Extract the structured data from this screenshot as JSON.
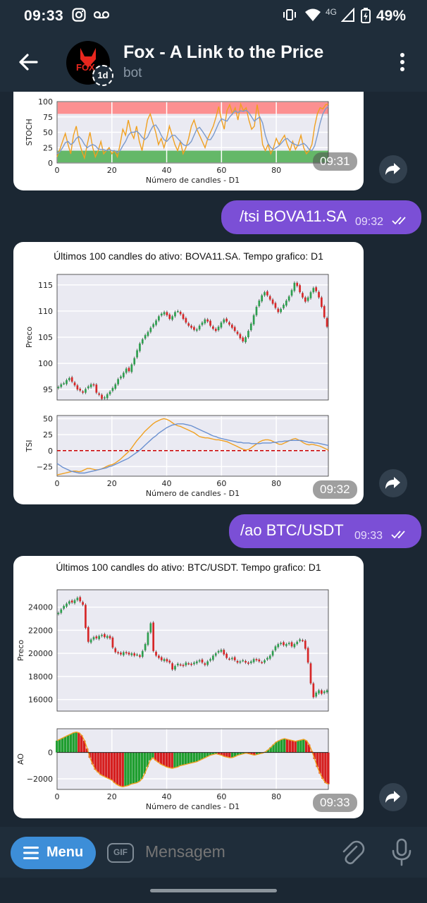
{
  "status_bar": {
    "time": "09:33",
    "network": "4G",
    "battery": "49%"
  },
  "header": {
    "title": "Fox - A Link to the Price",
    "subtitle": "bot",
    "avatar_text": "FOX",
    "timer_label": "1d"
  },
  "messages": [
    {
      "type": "chart",
      "chart": "stoch",
      "time": "09:31"
    },
    {
      "type": "text",
      "text": "/tsi BOVA11.SA",
      "time": "09:32"
    },
    {
      "type": "chart",
      "chart": "bova",
      "time": "09:32"
    },
    {
      "type": "text",
      "text": "/ao BTC/USDT",
      "time": "09:33"
    },
    {
      "type": "chart",
      "chart": "btc",
      "time": "09:33"
    }
  ],
  "input": {
    "menu_label": "Menu",
    "gif_label": "GIF",
    "placeholder": "Mensagem"
  },
  "colors": {
    "accent": "#3d8ed8",
    "outgoing": "#7b4fd6",
    "header_bg": "#1f2d3a",
    "chat_bg": "#1b2733"
  },
  "chart_data": [
    {
      "type": "line",
      "title": "",
      "ylabel": "STOCH",
      "xlabel": "Número de candles - D1",
      "xlim": [
        0,
        99
      ],
      "ylim": [
        0,
        100
      ],
      "xticks": [
        0,
        20,
        40,
        60,
        80
      ],
      "yticks": [
        0,
        25,
        50,
        75,
        100
      ],
      "bands": [
        {
          "from": 80,
          "to": 100,
          "color": "#ff8080"
        },
        {
          "from": 0,
          "to": 20,
          "color": "#4caf50"
        }
      ],
      "series": [
        {
          "color": "#f0a020",
          "values": [
            10,
            22,
            35,
            48,
            30,
            15,
            45,
            60,
            35,
            20,
            8,
            30,
            50,
            25,
            10,
            20,
            35,
            15,
            20,
            25,
            15,
            20,
            10,
            30,
            55,
            45,
            70,
            50,
            40,
            60,
            35,
            20,
            45,
            70,
            80,
            65,
            50,
            30,
            40,
            25,
            40,
            60,
            45,
            30,
            20,
            35,
            15,
            25,
            40,
            60,
            70,
            55,
            45,
            35,
            25,
            40,
            50,
            60,
            75,
            92,
            70,
            55,
            85,
            95,
            80,
            90,
            70,
            96,
            85,
            90,
            70,
            55,
            60,
            95,
            70,
            30,
            20,
            30,
            15,
            25,
            40,
            30,
            38,
            45,
            30,
            20,
            35,
            22,
            30,
            45,
            25,
            15,
            20,
            30,
            60,
            80,
            90,
            88,
            95,
            96
          ]
        },
        {
          "color": "#7b9acc",
          "values": [
            15,
            18,
            25,
            33,
            35,
            30,
            33,
            40,
            43,
            38,
            30,
            25,
            28,
            30,
            28,
            23,
            22,
            22,
            20,
            22,
            20,
            20,
            17,
            20,
            28,
            35,
            45,
            50,
            50,
            52,
            48,
            42,
            38,
            42,
            52,
            60,
            62,
            55,
            45,
            38,
            35,
            40,
            45,
            45,
            40,
            35,
            30,
            28,
            30,
            35,
            45,
            55,
            58,
            52,
            45,
            38,
            38,
            45,
            55,
            65,
            72,
            70,
            68,
            75,
            80,
            85,
            82,
            85,
            84,
            86,
            82,
            75,
            68,
            72,
            75,
            65,
            45,
            32,
            25,
            22,
            25,
            28,
            33,
            38,
            40,
            35,
            32,
            30,
            28,
            30,
            32,
            28,
            22,
            20,
            28,
            45,
            65,
            80,
            88,
            92
          ]
        }
      ]
    },
    {
      "type": "candlestick",
      "title": "Últimos 100 candles do ativo: BOVA11.SA. Tempo grafico: D1",
      "ylabel": "Preco",
      "ylim": [
        93,
        117
      ],
      "yticks": [
        95,
        100,
        105,
        110,
        115
      ],
      "closes": [
        95.5,
        96.0,
        96.2,
        96.8,
        97.2,
        96.5,
        95.8,
        95.0,
        94.8,
        94.4,
        95.1,
        95.6,
        96.0,
        95.8,
        94.4,
        94.0,
        93.2,
        93.5,
        94.1,
        94.6,
        95.3,
        96.0,
        97.0,
        97.5,
        98.2,
        99.0,
        98.5,
        99.8,
        101.0,
        102.5,
        103.8,
        104.6,
        105.4,
        106.0,
        106.8,
        107.5,
        108.2,
        109.0,
        109.5,
        109.8,
        109.2,
        108.5,
        109.0,
        109.8,
        110.0,
        109.4,
        108.5,
        107.8,
        107.2,
        106.8,
        106.4,
        106.5,
        107.2,
        107.8,
        108.4,
        108.0,
        107.2,
        106.6,
        106.2,
        107.0,
        107.8,
        108.4,
        108.0,
        107.4,
        106.8,
        106.2,
        105.6,
        104.8,
        104.2,
        105.0,
        106.2,
        107.6,
        109.2,
        110.8,
        112.0,
        113.0,
        113.6,
        113.0,
        112.2,
        111.4,
        110.6,
        109.8,
        110.4,
        111.2,
        112.0,
        112.8,
        114.0,
        115.4,
        114.8,
        113.6,
        112.6,
        111.8,
        112.6,
        113.6,
        114.4,
        113.8,
        112.6,
        110.8,
        108.8,
        107.0
      ]
    },
    {
      "type": "line",
      "ylabel": "TSI",
      "xlabel": "Número de candles - D1",
      "xlim": [
        0,
        99
      ],
      "ylim": [
        -40,
        55
      ],
      "xticks": [
        0,
        20,
        40,
        60,
        80
      ],
      "yticks": [
        -25,
        0,
        25,
        50
      ],
      "hline": {
        "value": 0,
        "color": "#cc0000"
      },
      "series": [
        {
          "color": "#f0a020",
          "values": [
            -38,
            -37,
            -36,
            -35,
            -34,
            -33,
            -32,
            -32,
            -33,
            -32,
            -30,
            -28,
            -28,
            -29,
            -30,
            -30,
            -29,
            -27,
            -25,
            -23,
            -22,
            -20,
            -17,
            -14,
            -10,
            -6,
            -2,
            3,
            9,
            15,
            20,
            25,
            30,
            34,
            38,
            42,
            45,
            47,
            49,
            50,
            49,
            47,
            44,
            41,
            39,
            38,
            36,
            34,
            32,
            30,
            28,
            25,
            22,
            21,
            20,
            20,
            19,
            18,
            17,
            17,
            16,
            15,
            14,
            12,
            10,
            8,
            6,
            4,
            2,
            1,
            2,
            5,
            8,
            11,
            14,
            16,
            17,
            17,
            16,
            14,
            12,
            10,
            10,
            12,
            14,
            16,
            18,
            19,
            17,
            15,
            12,
            10,
            9,
            10,
            9,
            8,
            7,
            5,
            3,
            1
          ]
        },
        {
          "color": "#6a90d0",
          "values": [
            -20,
            -23,
            -26,
            -28,
            -30,
            -32,
            -33,
            -34,
            -35,
            -35,
            -35,
            -34,
            -33,
            -32,
            -31,
            -30,
            -29,
            -28,
            -27,
            -25,
            -24,
            -22,
            -20,
            -18,
            -16,
            -14,
            -12,
            -9,
            -6,
            -3,
            0,
            4,
            8,
            12,
            16,
            20,
            23,
            27,
            30,
            33,
            36,
            38,
            40,
            41,
            42,
            42,
            42,
            41,
            40,
            39,
            37,
            35,
            33,
            31,
            29,
            27,
            25,
            23,
            22,
            20,
            19,
            18,
            17,
            16,
            15,
            14,
            13,
            13,
            12,
            12,
            12,
            11,
            11,
            11,
            11,
            12,
            12,
            12,
            12,
            13,
            13,
            14,
            14,
            15,
            15,
            16,
            16,
            16,
            16,
            16,
            15,
            14,
            13,
            13,
            12,
            12,
            11,
            10,
            9,
            8
          ]
        }
      ]
    },
    {
      "type": "candlestick",
      "title": "Últimos 100 candles do ativo: BTC/USDT. Tempo grafico: D1",
      "ylabel": "Preco",
      "ylim": [
        15000,
        25500
      ],
      "yticks": [
        16000,
        18000,
        20000,
        22000,
        24000
      ],
      "closes": [
        23500,
        23800,
        24100,
        24300,
        24500,
        24400,
        24600,
        24800,
        24500,
        24200,
        22200,
        21000,
        21200,
        21400,
        21300,
        21500,
        21600,
        21400,
        21500,
        21300,
        20500,
        20100,
        20000,
        19900,
        20100,
        20000,
        19900,
        20000,
        19800,
        19900,
        19700,
        20200,
        20800,
        21800,
        22600,
        20200,
        19800,
        19600,
        19400,
        19500,
        19300,
        19200,
        18600,
        18900,
        19100,
        19000,
        18900,
        19200,
        19100,
        19000,
        19200,
        19300,
        19400,
        19200,
        19000,
        19300,
        19500,
        19800,
        20000,
        20200,
        20300,
        19900,
        19600,
        19500,
        19600,
        19400,
        19200,
        19300,
        19400,
        19200,
        19100,
        19300,
        19500,
        19400,
        19300,
        19200,
        19400,
        19600,
        19800,
        20200,
        20600,
        20800,
        20900,
        20700,
        20800,
        20900,
        20600,
        20800,
        21000,
        21200,
        21100,
        20400,
        19200,
        17400,
        16200,
        16600,
        16800,
        16500,
        16700,
        16800
      ]
    },
    {
      "type": "bar",
      "ylabel": "AO",
      "xlabel": "Número de candles - D1",
      "xlim": [
        0,
        99
      ],
      "ylim": [
        -2800,
        1800
      ],
      "xticks": [
        0,
        20,
        40,
        60,
        80
      ],
      "yticks": [
        -2000,
        0
      ],
      "values": [
        900,
        1000,
        1100,
        1200,
        1300,
        1400,
        1500,
        1550,
        1500,
        1300,
        900,
        300,
        -400,
        -900,
        -1300,
        -1500,
        -1700,
        -1800,
        -1900,
        -2000,
        -2100,
        -2300,
        -2450,
        -2550,
        -2600,
        -2550,
        -2500,
        -2400,
        -2350,
        -2300,
        -2200,
        -2000,
        -1600,
        -1100,
        -600,
        -400,
        -600,
        -750,
        -900,
        -1000,
        -1100,
        -1150,
        -1200,
        -1150,
        -1100,
        -1000,
        -950,
        -900,
        -850,
        -800,
        -750,
        -700,
        -600,
        -500,
        -400,
        -300,
        -200,
        -150,
        -100,
        -150,
        -200,
        -300,
        -350,
        -400,
        -380,
        -300,
        -200,
        -150,
        -100,
        -50,
        -100,
        -150,
        -200,
        -150,
        -100,
        -50,
        50,
        200,
        400,
        600,
        800,
        900,
        1000,
        1050,
        1000,
        950,
        900,
        850,
        900,
        950,
        1000,
        900,
        600,
        100,
        -500,
        -1100,
        -1600,
        -2000,
        -2300,
        -2400
      ]
    }
  ]
}
